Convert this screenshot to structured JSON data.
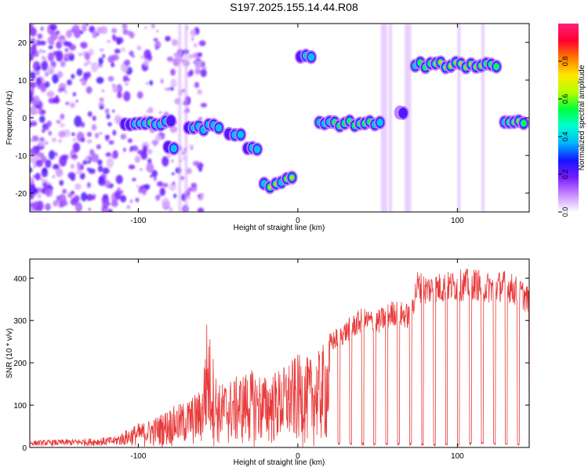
{
  "title": "S197.2025.155.14.44.R08",
  "chart_data": [
    {
      "type": "heatmap",
      "xlabel": "Height of straight line (km)",
      "ylabel": "Frequency (Hz)",
      "xlim": [
        -168,
        145
      ],
      "ylim": [
        -25,
        25
      ],
      "xticks": [
        -100,
        0,
        100
      ],
      "yticks": [
        -20,
        -10,
        0,
        10,
        20
      ],
      "colorbar": {
        "label": "Normalized spectral amplitude",
        "range": [
          0,
          1
        ],
        "ticks": [
          "0.0",
          "0.2",
          "0.4",
          "0.6",
          "0.8"
        ],
        "colors": [
          "#ffffff",
          "#c98bff",
          "#7a1cff",
          "#1414ff",
          "#00b4ff",
          "#00ffd0",
          "#00ff3c",
          "#b6ff00",
          "#ffe600",
          "#ff7a00",
          "#ff0030",
          "#ff1f7a"
        ]
      },
      "features": [
        {
          "x": [
            -110,
            -78
          ],
          "freq": -1.5,
          "amp": 0.55
        },
        {
          "x": [
            -83,
            -76
          ],
          "freq": -8,
          "amp": 0.4
        },
        {
          "x": [
            -70,
            -48
          ],
          "freq": -2.5,
          "amp": 0.55
        },
        {
          "x": [
            -45,
            -34
          ],
          "freq": -4.5,
          "amp": 0.5
        },
        {
          "x": [
            -33,
            -24
          ],
          "freq": -8,
          "amp": 0.5
        },
        {
          "x": [
            -23,
            -12
          ],
          "freq": -18,
          "amp": 0.8
        },
        {
          "x": [
            -12,
            -2
          ],
          "freq": -16.5,
          "amp": 0.85
        },
        {
          "x": [
            0,
            10
          ],
          "freq": 16,
          "amp": 0.5
        },
        {
          "x": [
            12,
            53
          ],
          "freq": -1.5,
          "amp": 0.7
        },
        {
          "x": [
            63,
            67
          ],
          "freq": 1,
          "amp": 0.3
        },
        {
          "x": [
            72,
            126
          ],
          "freq": 14,
          "amp": 0.9
        },
        {
          "x": [
            128,
            143
          ],
          "freq": -1,
          "amp": 0.85
        }
      ]
    },
    {
      "type": "line",
      "xlabel": "Height of straight line (km)",
      "ylabel": "SNR (10 * v/v)",
      "xlim": [
        -168,
        145
      ],
      "ylim": [
        0,
        445
      ],
      "xticks": [
        -100,
        0,
        100
      ],
      "yticks": [
        0,
        100,
        200,
        300,
        400
      ],
      "line_color": "#e83a3a",
      "series": [
        {
          "x": [
            -168,
            -150,
            -130,
            -115,
            -100,
            -90,
            -80,
            -70,
            -60,
            -57,
            -50,
            -40,
            -30,
            -20,
            -10,
            0,
            10,
            20,
            30,
            40,
            50,
            60,
            70,
            75,
            80,
            90,
            100,
            110,
            120,
            130,
            140,
            145
          ],
          "values": [
            12,
            15,
            18,
            22,
            55,
            70,
            95,
            110,
            140,
            310,
            150,
            165,
            185,
            170,
            190,
            220,
            210,
            270,
            300,
            330,
            325,
            350,
            340,
            420,
            410,
            415,
            420,
            425,
            415,
            420,
            400,
            380
          ]
        }
      ]
    }
  ]
}
